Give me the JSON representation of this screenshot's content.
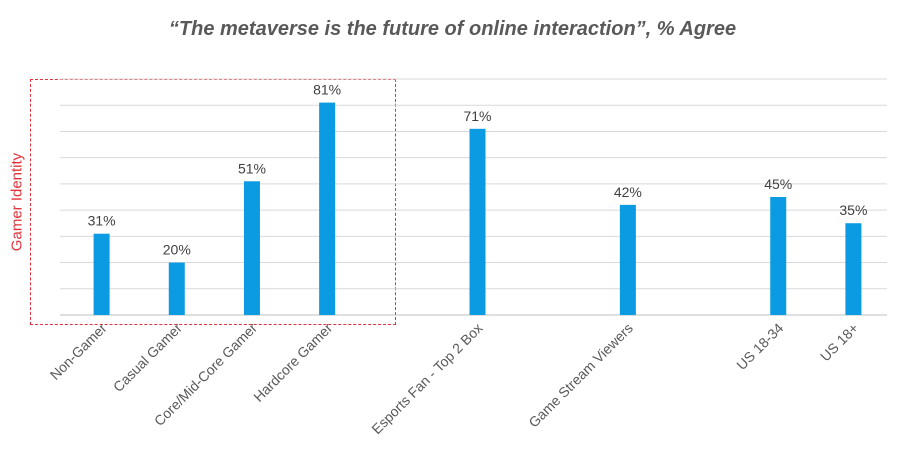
{
  "chart_data": {
    "type": "bar",
    "title": "“The metaverse is the future of online interaction”, % Agree",
    "xlabel": "",
    "ylabel": "",
    "ylim": [
      0,
      90
    ],
    "grid": true,
    "categories": [
      "Non-Gamer",
      "Casual Gamer",
      "Core/Mid-Core Gamer",
      "Hardcore Gamer",
      "",
      "Esports Fan - Top 2 Box",
      "",
      "Game Stream Viewers",
      "",
      "US 18-34",
      "US 18+"
    ],
    "values": [
      31,
      20,
      51,
      81,
      null,
      71,
      null,
      42,
      null,
      45,
      35
    ],
    "data_labels": [
      "31%",
      "20%",
      "51%",
      "81%",
      "",
      "71%",
      "",
      "42%",
      "",
      "45%",
      "35%"
    ],
    "annotations": [
      {
        "text": "Gamer Identity",
        "groups": [
          "Non-Gamer",
          "Casual Gamer",
          "Core/Mid-Core Gamer",
          "Hardcore Gamer"
        ]
      }
    ],
    "bar_color": "#0b9be3",
    "annotation_color": "#e0323a"
  }
}
